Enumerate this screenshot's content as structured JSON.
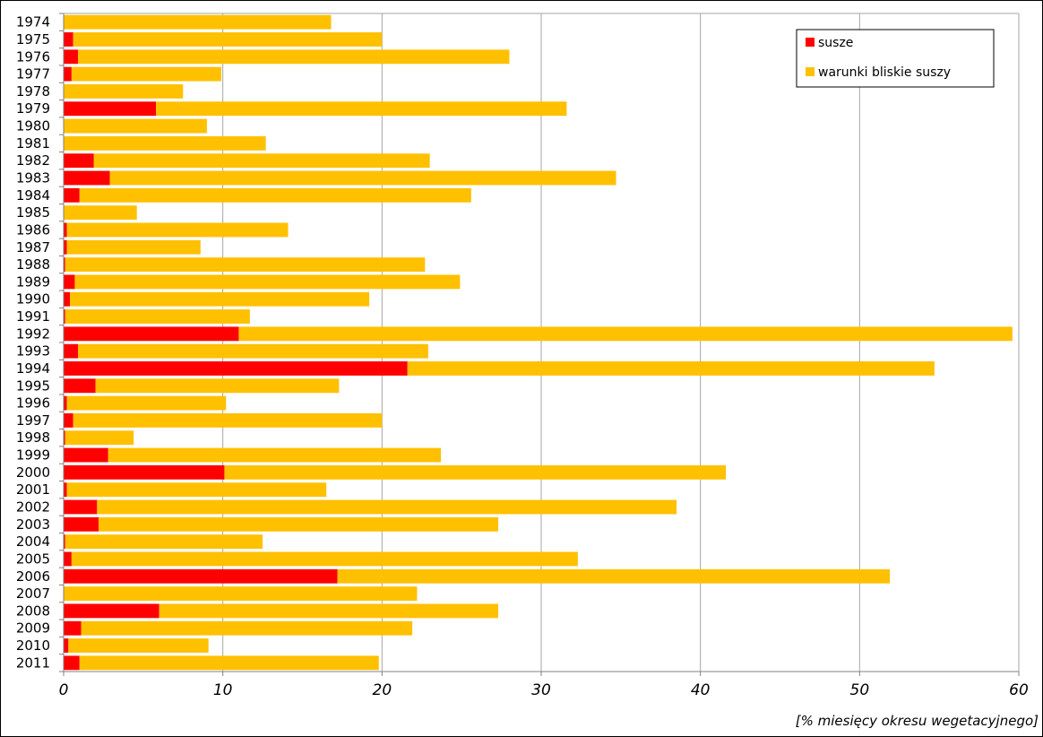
{
  "chart_data": {
    "type": "bar",
    "orientation": "horizontal",
    "stacked": true,
    "xlabel": "[% miesięcy okresu wegetacyjnego]",
    "ylabel": "",
    "xlim": [
      0,
      60
    ],
    "xticks": [
      "0",
      "10",
      "20",
      "30",
      "40",
      "50",
      "60"
    ],
    "grid": "vertical",
    "legend_position": "top-right",
    "categories": [
      "1974",
      "1975",
      "1976",
      "1977",
      "1978",
      "1979",
      "1980",
      "1981",
      "1982",
      "1983",
      "1984",
      "1985",
      "1986",
      "1987",
      "1988",
      "1989",
      "1990",
      "1991",
      "1992",
      "1993",
      "1994",
      "1995",
      "1996",
      "1997",
      "1998",
      "1999",
      "2000",
      "2001",
      "2002",
      "2003",
      "2004",
      "2005",
      "2006",
      "2007",
      "2008",
      "2009",
      "2010",
      "2011"
    ],
    "series": [
      {
        "name": "susze",
        "color": "#ff0000",
        "values": [
          0.0,
          0.6,
          0.9,
          0.5,
          0.0,
          5.8,
          0.0,
          0.0,
          1.9,
          2.9,
          1.0,
          0.0,
          0.2,
          0.2,
          0.1,
          0.7,
          0.4,
          0.1,
          11.0,
          0.9,
          21.6,
          2.0,
          0.2,
          0.6,
          0.1,
          2.8,
          10.1,
          0.2,
          2.1,
          2.2,
          0.1,
          0.5,
          17.2,
          0.0,
          6.0,
          1.1,
          0.3,
          1.0
        ]
      },
      {
        "name": "warunki bliskie suszy",
        "color": "#ffc000",
        "values": [
          16.8,
          19.4,
          27.1,
          9.4,
          7.5,
          25.8,
          9.0,
          12.7,
          21.1,
          31.8,
          24.6,
          4.6,
          13.9,
          8.4,
          22.6,
          24.2,
          18.8,
          11.6,
          48.6,
          22.0,
          33.1,
          15.3,
          10.0,
          19.4,
          4.3,
          20.9,
          31.5,
          16.3,
          36.4,
          25.1,
          12.4,
          31.8,
          34.7,
          22.2,
          21.3,
          20.8,
          8.8,
          18.8
        ]
      }
    ]
  }
}
